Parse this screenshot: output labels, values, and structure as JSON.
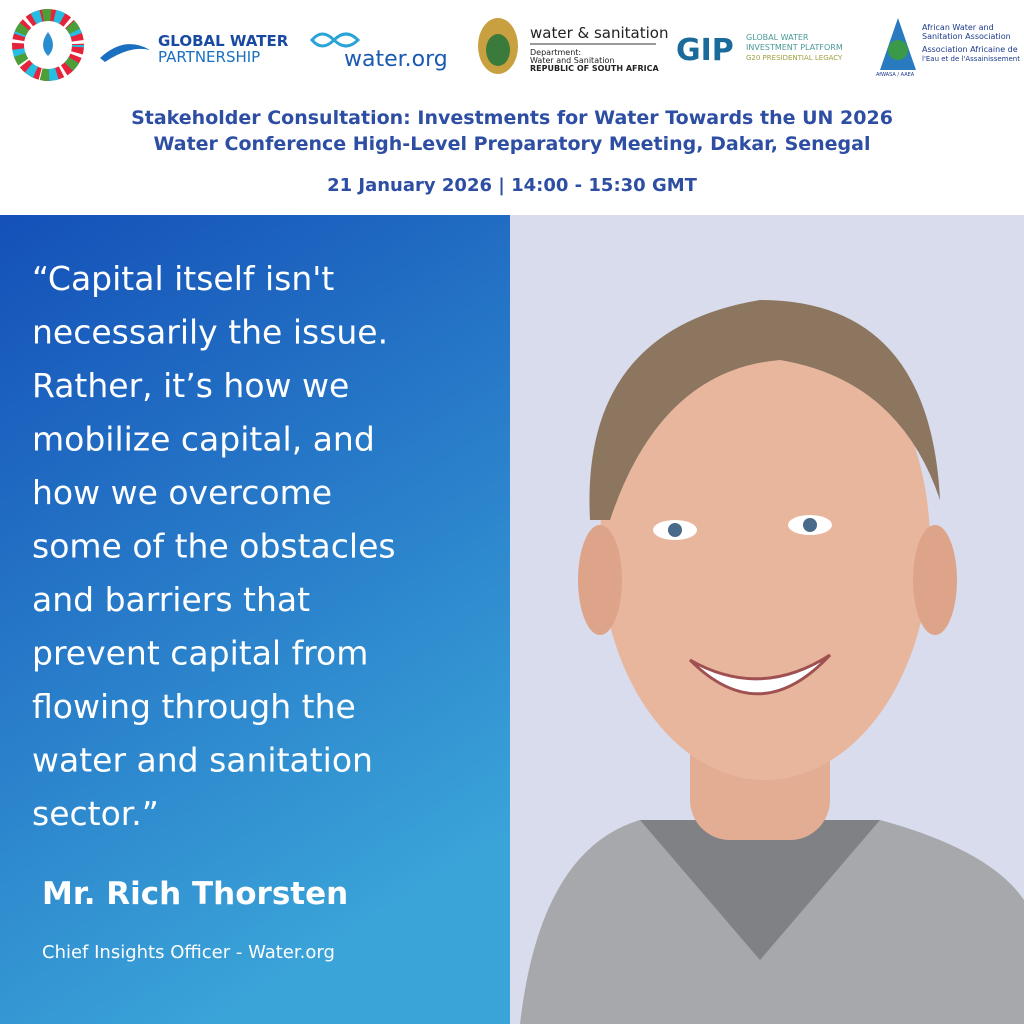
{
  "logos": {
    "gwp": [
      "GLOBAL WATER",
      "PARTNERSHIP"
    ],
    "waterorg": "water.org",
    "dws": {
      "title": "water & sanitation",
      "lines": [
        "Department:",
        "Water and Sanitation",
        "REPUBLIC OF SOUTH AFRICA"
      ]
    },
    "gip": {
      "mark": "GIP",
      "lines": [
        "GLOBAL WATER",
        "INVESTMENT PLATFORM",
        "G20 PRESIDENTIAL LEGACY"
      ]
    },
    "afwasa": {
      "lines": [
        "African Water and",
        "Sanitation Association",
        "Association Africaine de",
        "l'Eau et de l'Assainissement"
      ],
      "badge": "AfWASA / AAEA"
    }
  },
  "header": {
    "title": [
      "Stakeholder Consultation: Investments for Water Towards the UN 2026",
      "Water Conference High-Level Preparatory Meeting, Dakar, Senegal"
    ],
    "date": "21 January 2026 | 14:00 - 15:30 GMT"
  },
  "quote": {
    "lines": [
      "“Capital itself isn't",
      "necessarily the issue.",
      "Rather, it’s how we",
      "mobilize capital, and",
      "how we overcome",
      "some of the obstacles",
      "and barriers that",
      "prevent capital from",
      "flowing through the",
      "water and sanitation",
      "sector.”"
    ],
    "speaker": "Mr. Rich Thorsten",
    "role": "Chief Insights Officer - Water.org"
  }
}
